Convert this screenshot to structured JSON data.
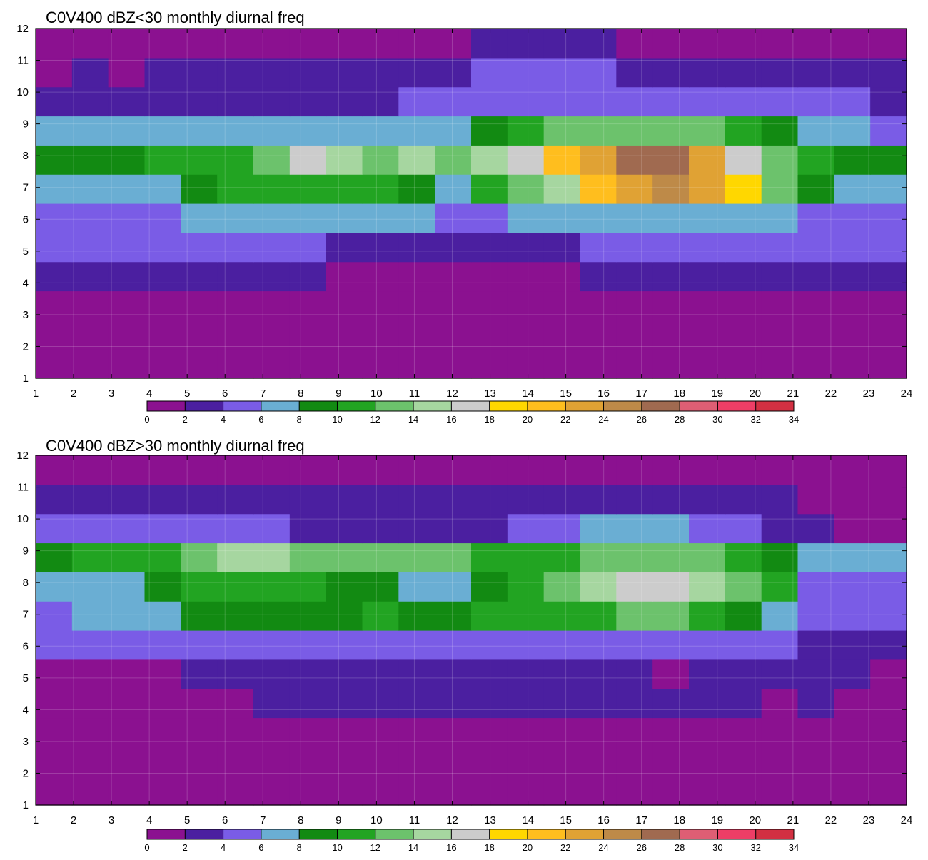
{
  "colorbar": {
    "ticks": [
      "0",
      "2",
      "4",
      "6",
      "8",
      "10",
      "12",
      "14",
      "16",
      "18",
      "20",
      "22",
      "24",
      "26",
      "28",
      "30",
      "32",
      "34"
    ],
    "colors": [
      "#8B1190",
      "#4B1FA0",
      "#7A5CE6",
      "#6AAED3",
      "#128A12",
      "#22A422",
      "#6CC26C",
      "#A6D6A0",
      "#CCCCCC",
      "#FFD700",
      "#FFBE1E",
      "#E0A234",
      "#BE8A48",
      "#A06A50",
      "#DE5E74",
      "#EE3E66",
      "#D23042"
    ]
  },
  "chart_data": [
    {
      "type": "heatmap",
      "title": "C0V400 dBZ<30 monthly diurnal freq",
      "x_ticks": [
        "1",
        "2",
        "3",
        "4",
        "5",
        "6",
        "7",
        "8",
        "9",
        "10",
        "11",
        "12",
        "13",
        "14",
        "15",
        "16",
        "17",
        "18",
        "19",
        "20",
        "21",
        "22",
        "23",
        "24"
      ],
      "y_ticks": [
        "1",
        "2",
        "3",
        "4",
        "5",
        "6",
        "7",
        "8",
        "9",
        "10",
        "11",
        "12"
      ],
      "xlim": [
        1,
        24
      ],
      "ylim": [
        1,
        12
      ],
      "grid": true,
      "levels": [
        0,
        2,
        4,
        6,
        8,
        10,
        12,
        14,
        16,
        18,
        20,
        22,
        24,
        26,
        28,
        30,
        32,
        34
      ],
      "z": [
        [
          1.5,
          1.5,
          1.5,
          1.5,
          1.5,
          1.5,
          1.5,
          1.5,
          1.5,
          1.5,
          1.5,
          1.5,
          1.5,
          1.5,
          1.5,
          1.5,
          1.5,
          1.5,
          1.5,
          1.5,
          1.5,
          1.5,
          1.5,
          1.5
        ],
        [
          1.5,
          1.5,
          1.5,
          1.5,
          1.5,
          1.5,
          1.5,
          1.5,
          1.5,
          1.5,
          1.5,
          1.5,
          1.5,
          1.5,
          1.5,
          1.5,
          1.5,
          1.5,
          1.5,
          1.5,
          1.5,
          1.5,
          1.5,
          1.5
        ],
        [
          1.5,
          1.5,
          1.5,
          1.5,
          1.5,
          1.5,
          1.5,
          1.5,
          1.5,
          1.5,
          1.5,
          1.5,
          1.5,
          1.5,
          1.5,
          1.5,
          1.5,
          1.5,
          1.5,
          1.5,
          1.5,
          1.5,
          1.5,
          1.5
        ],
        [
          3,
          3,
          3,
          3,
          3,
          3,
          3,
          3,
          1.5,
          1.5,
          1.5,
          1.5,
          1.5,
          1.5,
          1.5,
          3,
          3,
          3,
          3,
          3,
          3,
          3,
          3,
          3
        ],
        [
          5,
          5,
          5,
          5,
          5,
          5,
          5,
          5,
          3,
          3,
          3,
          3,
          3,
          3,
          3,
          5,
          5,
          5,
          5,
          5,
          5,
          5,
          5,
          5
        ],
        [
          5,
          5,
          5,
          5,
          7,
          7,
          7,
          7,
          7,
          7,
          7,
          5,
          5,
          7,
          7,
          7,
          7,
          7,
          7,
          7,
          7,
          5,
          5,
          5
        ],
        [
          7,
          7,
          7,
          7,
          9,
          11,
          11,
          11,
          11,
          11,
          9,
          7,
          11,
          13,
          15,
          21,
          23,
          25,
          23,
          19,
          13,
          9,
          7,
          7
        ],
        [
          9,
          9,
          9,
          11,
          11,
          11,
          13,
          17,
          15,
          13,
          15,
          13,
          15,
          17,
          21,
          23,
          27,
          27,
          23,
          17,
          13,
          11,
          9,
          9
        ],
        [
          7,
          7,
          7,
          7,
          7,
          7,
          7,
          7,
          7,
          7,
          7,
          7,
          9,
          11,
          13,
          13,
          13,
          13,
          13,
          11,
          9,
          7,
          7,
          5
        ],
        [
          3,
          3,
          3,
          3,
          3,
          3,
          3,
          3,
          3,
          3,
          5,
          5,
          5,
          5,
          5,
          5,
          5,
          5,
          5,
          5,
          5,
          5,
          5,
          3
        ],
        [
          1.5,
          3,
          1.5,
          3,
          3,
          3,
          3,
          3,
          3,
          3,
          3,
          3,
          5,
          5,
          5,
          5,
          3,
          3,
          3,
          3,
          3,
          3,
          3,
          3
        ],
        [
          1.5,
          1.5,
          1.5,
          1.5,
          1.5,
          1.5,
          1.5,
          1.5,
          1.5,
          1.5,
          1.5,
          1.5,
          3,
          3,
          3,
          3,
          1.5,
          1.5,
          1.5,
          1.5,
          1.5,
          1.5,
          1.5,
          1.5
        ]
      ]
    },
    {
      "type": "heatmap",
      "title": "C0V400 dBZ>30 monthly diurnal freq",
      "x_ticks": [
        "1",
        "2",
        "3",
        "4",
        "5",
        "6",
        "7",
        "8",
        "9",
        "10",
        "11",
        "12",
        "13",
        "14",
        "15",
        "16",
        "17",
        "18",
        "19",
        "20",
        "21",
        "22",
        "23",
        "24"
      ],
      "y_ticks": [
        "1",
        "2",
        "3",
        "4",
        "5",
        "6",
        "7",
        "8",
        "9",
        "10",
        "11",
        "12"
      ],
      "xlim": [
        1,
        24
      ],
      "ylim": [
        1,
        12
      ],
      "grid": true,
      "levels": [
        0,
        2,
        4,
        6,
        8,
        10,
        12,
        14,
        16,
        18,
        20,
        22,
        24,
        26,
        28,
        30,
        32,
        34
      ],
      "z": [
        [
          1.5,
          1.5,
          1.5,
          1.5,
          1.5,
          1.5,
          1.5,
          1.5,
          1.5,
          1.5,
          1.5,
          1.5,
          1.5,
          1.5,
          1.5,
          1.5,
          1.5,
          1.5,
          1.5,
          1.5,
          1.5,
          1.5,
          1.5,
          1.5
        ],
        [
          1.5,
          1.5,
          1.5,
          1.5,
          1.5,
          1.5,
          1.5,
          1.5,
          1.5,
          1.5,
          1.5,
          1.5,
          1.5,
          1.5,
          1.5,
          1.5,
          1.5,
          1.5,
          1.5,
          1.5,
          1.5,
          1.5,
          1.5,
          1.5
        ],
        [
          1.5,
          1.5,
          1.5,
          1.5,
          1.5,
          1.5,
          1.5,
          1.5,
          1.5,
          1.5,
          1.5,
          1.5,
          1.5,
          1.5,
          1.5,
          1.5,
          1.5,
          1.5,
          1.5,
          1.5,
          1.5,
          1.5,
          1.5,
          1.5
        ],
        [
          1.5,
          1.5,
          1.5,
          1.5,
          1.5,
          1.5,
          3,
          3,
          3,
          3,
          3,
          3,
          3,
          3,
          3,
          3,
          3,
          3,
          3,
          3,
          1.5,
          3,
          1.5,
          1.5
        ],
        [
          1.5,
          1.5,
          1.5,
          1.5,
          3,
          3,
          3,
          3,
          3,
          3,
          3,
          3,
          3,
          3,
          3,
          3,
          3,
          1.5,
          3,
          3,
          3,
          3,
          3,
          1.5
        ],
        [
          5,
          5,
          5,
          5,
          5,
          5,
          5,
          5,
          5,
          5,
          5,
          5,
          5,
          5,
          5,
          5,
          5,
          5,
          5,
          5,
          5,
          3,
          3,
          3
        ],
        [
          5,
          7,
          7,
          7,
          9,
          9,
          9,
          9,
          9,
          11,
          9,
          9,
          11,
          11,
          11,
          11,
          13,
          13,
          11,
          9,
          7,
          5,
          5,
          5
        ],
        [
          7,
          7,
          7,
          9,
          11,
          11,
          11,
          11,
          9,
          9,
          7,
          7,
          9,
          11,
          13,
          15,
          17,
          17,
          15,
          13,
          11,
          5,
          5,
          5
        ],
        [
          9,
          11,
          11,
          11,
          13,
          15,
          15,
          13,
          13,
          13,
          13,
          13,
          11,
          11,
          11,
          13,
          13,
          13,
          13,
          11,
          9,
          7,
          7,
          7
        ],
        [
          5,
          5,
          5,
          5,
          5,
          5,
          5,
          3,
          3,
          3,
          3,
          3,
          3,
          5,
          5,
          7,
          7,
          7,
          5,
          5,
          3,
          3,
          1.5,
          1.5
        ],
        [
          3,
          3,
          3,
          3,
          3,
          3,
          3,
          3,
          3,
          3,
          3,
          3,
          3,
          3,
          3,
          3,
          3,
          3,
          3,
          3,
          3,
          1.5,
          1.5,
          1.5
        ],
        [
          1.5,
          1.5,
          1.5,
          1.5,
          1.5,
          1.5,
          1.5,
          1.5,
          1.5,
          1.5,
          1.5,
          1.5,
          1.5,
          1.5,
          1.5,
          1.5,
          1.5,
          1.5,
          1.5,
          1.5,
          1.5,
          1.5,
          1.5,
          1.5
        ]
      ]
    }
  ]
}
